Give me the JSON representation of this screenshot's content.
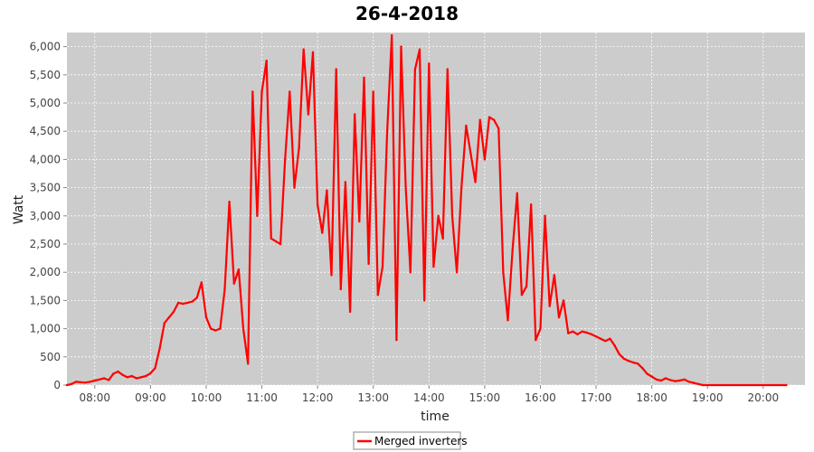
{
  "chart_data": {
    "type": "line",
    "title": "26-4-2018",
    "xlabel": "time",
    "ylabel": "Watt",
    "x_tick_labels": [
      "08:00",
      "09:00",
      "10:00",
      "11:00",
      "12:00",
      "13:00",
      "14:00",
      "15:00",
      "16:00",
      "17:00",
      "18:00",
      "19:00",
      "20:00"
    ],
    "y_tick_labels": [
      "0",
      "500",
      "1,000",
      "1,500",
      "2,000",
      "2,500",
      "3,000",
      "3,500",
      "4,000",
      "4,500",
      "5,000",
      "5,500",
      "6,000"
    ],
    "xlim": [
      "07:30",
      "20:45"
    ],
    "ylim": [
      0,
      6250
    ],
    "grid": true,
    "legend_position": "bottom-center",
    "colors": {
      "plot_background": "#cccccc",
      "series": "#ff0000",
      "grid": "#ffffff"
    },
    "series": [
      {
        "name": "Merged inverters",
        "points": [
          [
            "07:30",
            0
          ],
          [
            "07:35",
            20
          ],
          [
            "07:40",
            60
          ],
          [
            "07:45",
            50
          ],
          [
            "07:50",
            45
          ],
          [
            "07:55",
            60
          ],
          [
            "08:00",
            80
          ],
          [
            "08:05",
            100
          ],
          [
            "08:10",
            120
          ],
          [
            "08:15",
            90
          ],
          [
            "08:20",
            200
          ],
          [
            "08:25",
            240
          ],
          [
            "08:30",
            180
          ],
          [
            "08:35",
            140
          ],
          [
            "08:40",
            160
          ],
          [
            "08:45",
            120
          ],
          [
            "08:50",
            140
          ],
          [
            "08:55",
            160
          ],
          [
            "09:00",
            210
          ],
          [
            "09:05",
            300
          ],
          [
            "09:10",
            650
          ],
          [
            "09:15",
            1100
          ],
          [
            "09:20",
            1200
          ],
          [
            "09:25",
            1300
          ],
          [
            "09:30",
            1460
          ],
          [
            "09:35",
            1440
          ],
          [
            "09:40",
            1460
          ],
          [
            "09:45",
            1480
          ],
          [
            "09:50",
            1550
          ],
          [
            "09:55",
            1820
          ],
          [
            "10:00",
            1200
          ],
          [
            "10:05",
            1000
          ],
          [
            "10:10",
            970
          ],
          [
            "10:15",
            1000
          ],
          [
            "10:20",
            1700
          ],
          [
            "10:25",
            3250
          ],
          [
            "10:30",
            1800
          ],
          [
            "10:35",
            2050
          ],
          [
            "10:40",
            1000
          ],
          [
            "10:45",
            380
          ],
          [
            "10:50",
            5200
          ],
          [
            "10:55",
            3000
          ],
          [
            "11:00",
            5200
          ],
          [
            "11:05",
            5750
          ],
          [
            "11:10",
            2600
          ],
          [
            "11:15",
            2550
          ],
          [
            "11:20",
            2500
          ],
          [
            "11:25",
            4000
          ],
          [
            "11:30",
            5200
          ],
          [
            "11:35",
            3500
          ],
          [
            "11:40",
            4200
          ],
          [
            "11:45",
            5950
          ],
          [
            "11:50",
            4800
          ],
          [
            "11:55",
            5900
          ],
          [
            "12:00",
            3200
          ],
          [
            "12:05",
            2700
          ],
          [
            "12:10",
            3450
          ],
          [
            "12:15",
            1950
          ],
          [
            "12:20",
            5600
          ],
          [
            "12:25",
            1700
          ],
          [
            "12:30",
            3600
          ],
          [
            "12:35",
            1300
          ],
          [
            "12:40",
            4800
          ],
          [
            "12:45",
            2900
          ],
          [
            "12:50",
            5450
          ],
          [
            "12:55",
            2150
          ],
          [
            "13:00",
            5200
          ],
          [
            "13:05",
            1600
          ],
          [
            "13:10",
            2100
          ],
          [
            "13:15",
            4500
          ],
          [
            "13:20",
            6200
          ],
          [
            "13:25",
            800
          ],
          [
            "13:30",
            6000
          ],
          [
            "13:35",
            3500
          ],
          [
            "13:40",
            2000
          ],
          [
            "13:45",
            5600
          ],
          [
            "13:50",
            5950
          ],
          [
            "13:55",
            1500
          ],
          [
            "14:00",
            5700
          ],
          [
            "14:05",
            2100
          ],
          [
            "14:10",
            3000
          ],
          [
            "14:15",
            2600
          ],
          [
            "14:20",
            5600
          ],
          [
            "14:25",
            3000
          ],
          [
            "14:30",
            2000
          ],
          [
            "14:35",
            3500
          ],
          [
            "14:40",
            4600
          ],
          [
            "14:45",
            4100
          ],
          [
            "14:50",
            3600
          ],
          [
            "14:55",
            4700
          ],
          [
            "15:00",
            4000
          ],
          [
            "15:05",
            4750
          ],
          [
            "15:10",
            4700
          ],
          [
            "15:15",
            4550
          ],
          [
            "15:20",
            2000
          ],
          [
            "15:25",
            1150
          ],
          [
            "15:30",
            2400
          ],
          [
            "15:35",
            3400
          ],
          [
            "15:40",
            1600
          ],
          [
            "15:45",
            1750
          ],
          [
            "15:50",
            3200
          ],
          [
            "15:55",
            800
          ],
          [
            "16:00",
            1000
          ],
          [
            "16:05",
            3000
          ],
          [
            "16:10",
            1400
          ],
          [
            "16:15",
            1950
          ],
          [
            "16:20",
            1200
          ],
          [
            "16:25",
            1500
          ],
          [
            "16:30",
            920
          ],
          [
            "16:35",
            950
          ],
          [
            "16:40",
            900
          ],
          [
            "16:45",
            950
          ],
          [
            "16:50",
            930
          ],
          [
            "16:55",
            900
          ],
          [
            "17:00",
            860
          ],
          [
            "17:05",
            820
          ],
          [
            "17:10",
            780
          ],
          [
            "17:15",
            820
          ],
          [
            "17:20",
            700
          ],
          [
            "17:25",
            550
          ],
          [
            "17:30",
            470
          ],
          [
            "17:35",
            430
          ],
          [
            "17:40",
            400
          ],
          [
            "17:45",
            380
          ],
          [
            "17:50",
            300
          ],
          [
            "17:55",
            200
          ],
          [
            "18:00",
            150
          ],
          [
            "18:05",
            100
          ],
          [
            "18:10",
            80
          ],
          [
            "18:15",
            120
          ],
          [
            "18:20",
            90
          ],
          [
            "18:25",
            70
          ],
          [
            "18:30",
            80
          ],
          [
            "18:35",
            100
          ],
          [
            "18:40",
            60
          ],
          [
            "18:45",
            40
          ],
          [
            "18:50",
            20
          ],
          [
            "18:55",
            0
          ],
          [
            "20:25",
            0
          ]
        ]
      }
    ]
  }
}
